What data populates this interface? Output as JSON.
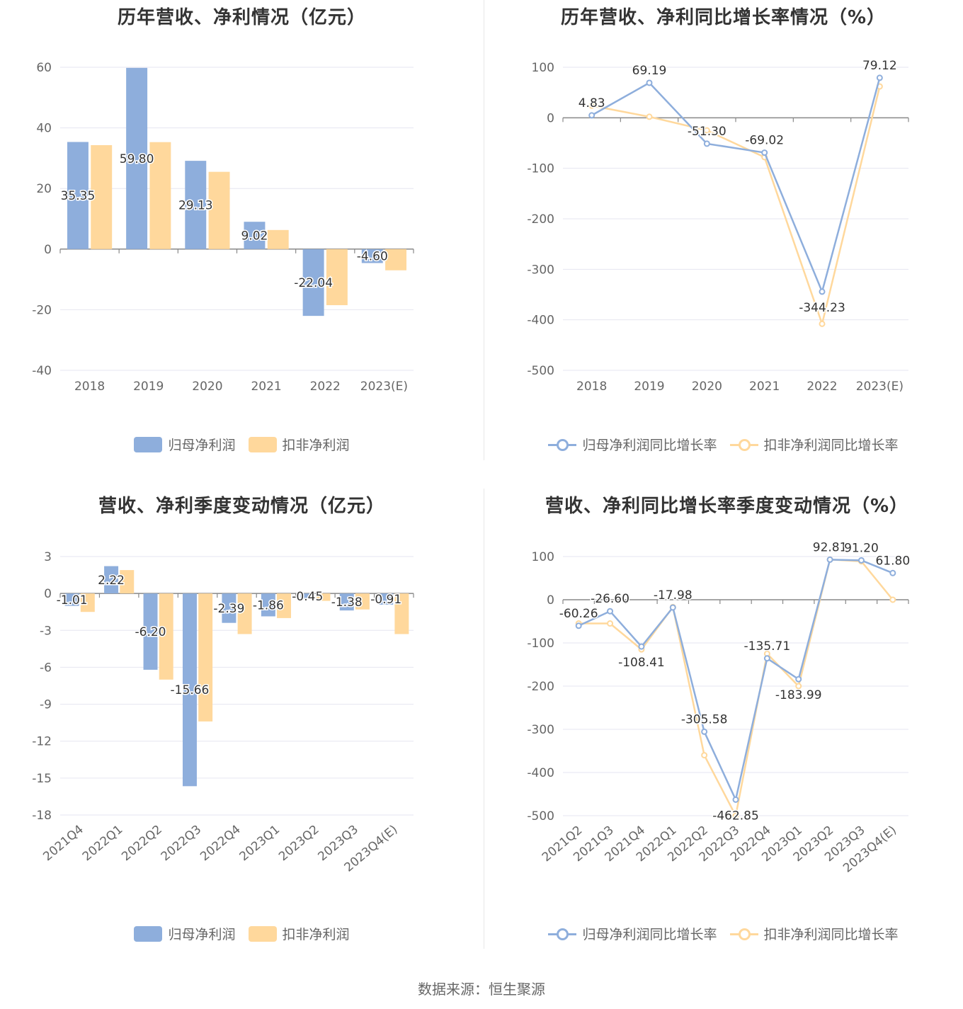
{
  "colors": {
    "parent_net_profit": "#8eaedc",
    "deducted_net_profit": "#ffd89c",
    "axis_text": "#666666",
    "grid": "#e6e6f0"
  },
  "source": "数据来源：恒生聚源",
  "chart_data": [
    {
      "id": "annual-profit",
      "type": "bar",
      "title": "历年营收、净利情况（亿元）",
      "categories": [
        "2018",
        "2019",
        "2020",
        "2021",
        "2022",
        "2023(E)"
      ],
      "series": [
        {
          "name": "归母净利润",
          "values": [
            35.35,
            59.8,
            29.13,
            9.02,
            -22.04,
            -4.6
          ],
          "labels": [
            "35.35",
            "59.80",
            "29.13",
            "9.02",
            "-22.04",
            "-4.60"
          ]
        },
        {
          "name": "扣非净利润",
          "values": [
            34.3,
            35.3,
            25.5,
            6.3,
            -18.5,
            -7.0
          ]
        }
      ],
      "ylim": [
        -40,
        60
      ],
      "yticks": [
        60,
        40,
        20,
        0,
        -20,
        -40
      ],
      "grid": true,
      "legend_position": "bottom-center"
    },
    {
      "id": "annual-growth",
      "type": "line",
      "title": "历年营收、净利同比增长率情况（%）",
      "categories": [
        "2018",
        "2019",
        "2020",
        "2021",
        "2022",
        "2023(E)"
      ],
      "series": [
        {
          "name": "归母净利润同比增长率",
          "values": [
            4.83,
            69.19,
            -51.3,
            -69.02,
            -344.23,
            79.12
          ],
          "labels": [
            "4.83",
            "69.19",
            "-51.30",
            "-69.02",
            "-344.23",
            "79.12"
          ]
        },
        {
          "name": "扣非净利润同比增长率",
          "values": [
            24,
            2,
            -25,
            -78,
            -408,
            62
          ]
        }
      ],
      "ylim": [
        -500,
        100
      ],
      "yticks": [
        100,
        0,
        -100,
        -200,
        -300,
        -400,
        -500
      ],
      "grid": true,
      "legend_position": "bottom-center"
    },
    {
      "id": "quarterly-profit",
      "type": "bar",
      "title": "营收、净利季度变动情况（亿元）",
      "categories": [
        "2021Q4",
        "2022Q1",
        "2022Q2",
        "2022Q3",
        "2022Q4",
        "2023Q1",
        "2023Q2",
        "2023Q3",
        "2023Q4(E)"
      ],
      "series": [
        {
          "name": "归母净利润",
          "values": [
            -1.01,
            2.22,
            -6.2,
            -15.66,
            -2.39,
            -1.86,
            -0.45,
            -1.38,
            -0.91
          ],
          "labels": [
            "-1.01",
            "2.22",
            "-6.20",
            "-15.66",
            "-2.39",
            "-1.86",
            "-0.45",
            "-1.38",
            "-0.91"
          ]
        },
        {
          "name": "扣非净利润",
          "values": [
            -1.5,
            1.9,
            -7.0,
            -10.4,
            -3.3,
            -2.0,
            -0.6,
            -1.3,
            -3.3
          ]
        }
      ],
      "ylim": [
        -18,
        3
      ],
      "yticks": [
        3,
        0,
        -3,
        -6,
        -9,
        -12,
        -15,
        -18
      ],
      "grid": true,
      "legend_position": "bottom-center"
    },
    {
      "id": "quarterly-growth",
      "type": "line",
      "title": "营收、净利同比增长率季度变动情况（%）",
      "categories": [
        "2021Q2",
        "2021Q3",
        "2021Q4",
        "2022Q1",
        "2022Q2",
        "2022Q3",
        "2022Q4",
        "2023Q1",
        "2023Q2",
        "2023Q3",
        "2023Q4(E)"
      ],
      "series": [
        {
          "name": "归母净利润同比增长率",
          "values": [
            -60.26,
            -26.6,
            -108.41,
            -17.98,
            -305.58,
            -462.85,
            -135.71,
            -183.99,
            92.81,
            91.2,
            61.8
          ],
          "labels": [
            "-60.26",
            "-26.60",
            "-108.41",
            "-17.98",
            "-305.58",
            "-462.85",
            "-135.71",
            "-183.99",
            "92.81",
            "91.20",
            "61.80"
          ]
        },
        {
          "name": "扣非净利润同比增长率",
          "values": [
            -55,
            -55,
            -115,
            -17,
            -360,
            -500,
            -125,
            -200,
            93,
            89,
            0
          ]
        }
      ],
      "ylim": [
        -500,
        100
      ],
      "yticks": [
        100,
        0,
        -100,
        -200,
        -300,
        -400,
        -500
      ],
      "grid": true,
      "legend_position": "bottom-center"
    }
  ]
}
